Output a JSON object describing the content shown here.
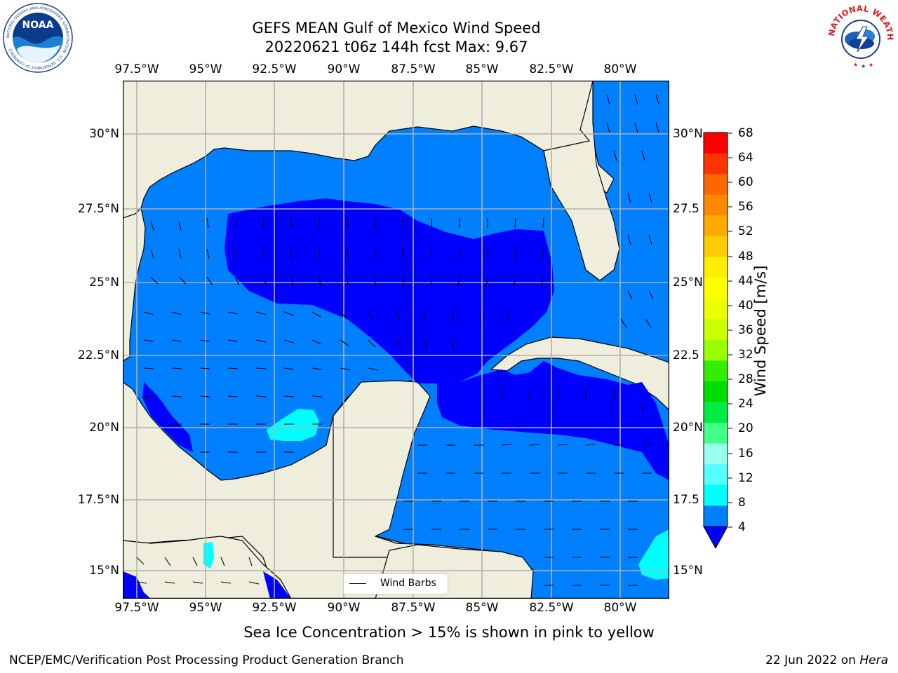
{
  "header": {
    "title_line1": "GEFS MEAN Gulf of Mexico Wind Speed",
    "title_line2": "20220621 t06z 144h fcst   Max: 9.67"
  },
  "logos": {
    "noaa_text": "NOAA",
    "noaa_ring_text": "NATIONAL OCEANIC AND ATMOSPHERIC ADMINISTRATION · U.S. DEPARTMENT OF COMMERCE",
    "nws_ring_text": "NATIONAL WEATHER SERVICE"
  },
  "map": {
    "lon_ticks": [
      "97.5°W",
      "95°W",
      "92.5°W",
      "90°W",
      "87.5°W",
      "85°W",
      "82.5°W",
      "80°W"
    ],
    "lat_ticks_left": [
      "30°N",
      "27.5°N",
      "25°N",
      "22.5°N",
      "20°N",
      "17.5°N",
      "15°N"
    ],
    "lat_ticks_right": [
      "30°N",
      "27.5",
      "25°N",
      "22.5",
      "20°N",
      "17.5",
      "15°N"
    ],
    "legend_label": "Wind Barbs",
    "colors": {
      "land": "#efeedc",
      "wind_4_8": "#0080ff",
      "wind_below_4": "#0000ff",
      "wind_8_12": "#00ffff",
      "wind_12_16": "#4dffff",
      "grid": "#b0b0b0"
    }
  },
  "colorbar": {
    "title": "Wind Speed [m/s]",
    "labels": [
      "68",
      "64",
      "60",
      "56",
      "52",
      "48",
      "44",
      "40",
      "36",
      "32",
      "28",
      "24",
      "20",
      "16",
      "12",
      "8",
      "4"
    ],
    "colors": [
      "#ff0000",
      "#ff3300",
      "#ff6600",
      "#ff8800",
      "#ffaa00",
      "#ffcc00",
      "#ffee00",
      "#ffff00",
      "#eeff00",
      "#ccff00",
      "#99ff00",
      "#33ee00",
      "#00dd00",
      "#00ee44",
      "#44ff88",
      "#99ffee",
      "#55ffff",
      "#00ffff",
      "#0080ff"
    ],
    "under_color": "#0000ff"
  },
  "footer": {
    "note": "Sea Ice Concentration > 15% is shown in pink to yellow",
    "credit_left": "NCEP/EMC/Verification Post Processing Product Generation Branch",
    "credit_date": "22 Jun 2022 on ",
    "credit_host": "Hera"
  }
}
